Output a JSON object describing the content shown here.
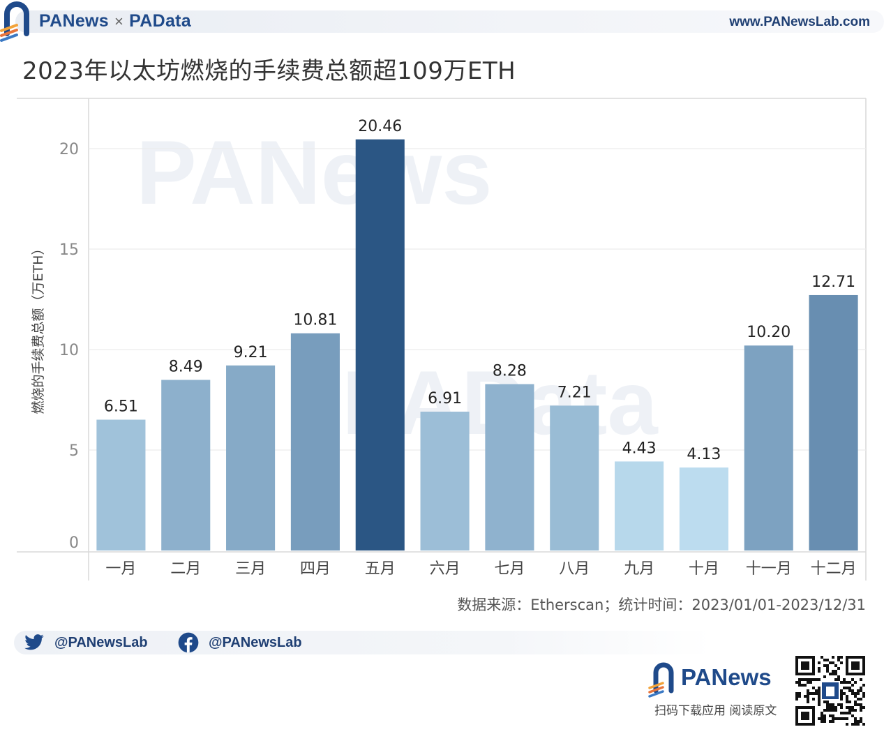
{
  "header": {
    "brand_left": "PANews",
    "brand_times": "×",
    "brand_right": "PAData",
    "url": "www.PANewsLab.com"
  },
  "title": "2023年以太坊燃烧的手续费总额超109万ETH",
  "chart_data": {
    "type": "bar",
    "title": "2023年以太坊燃烧的手续费总额超109万ETH",
    "xlabel": "",
    "ylabel": "燃烧的手续费总额（万ETH）",
    "categories": [
      "一月",
      "二月",
      "三月",
      "四月",
      "五月",
      "六月",
      "七月",
      "八月",
      "九月",
      "十月",
      "十一月",
      "十二月"
    ],
    "values": [
      6.51,
      8.49,
      9.21,
      10.81,
      20.46,
      6.91,
      8.28,
      7.21,
      4.43,
      4.13,
      10.2,
      12.71
    ],
    "value_labels": [
      "6.51",
      "8.49",
      "9.21",
      "10.81",
      "20.46",
      "6.91",
      "8.28",
      "7.21",
      "4.43",
      "4.13",
      "10.20",
      "12.71"
    ],
    "yticks": [
      0,
      5,
      10,
      15,
      20
    ],
    "ylim": [
      0,
      22.5
    ],
    "grid": true,
    "color_scale": [
      "#bcdcef",
      "#2b5684"
    ]
  },
  "source_note": "数据来源：Etherscan；统计时间：2023/01/01-2023/12/31",
  "social": {
    "twitter_handle": "@PANewsLab",
    "facebook_handle": "@PANewsLab"
  },
  "footer": {
    "brand": "PANews",
    "tagline": "扫码下载应用  阅读原文"
  },
  "watermarks": [
    "PANews",
    "PAData"
  ]
}
